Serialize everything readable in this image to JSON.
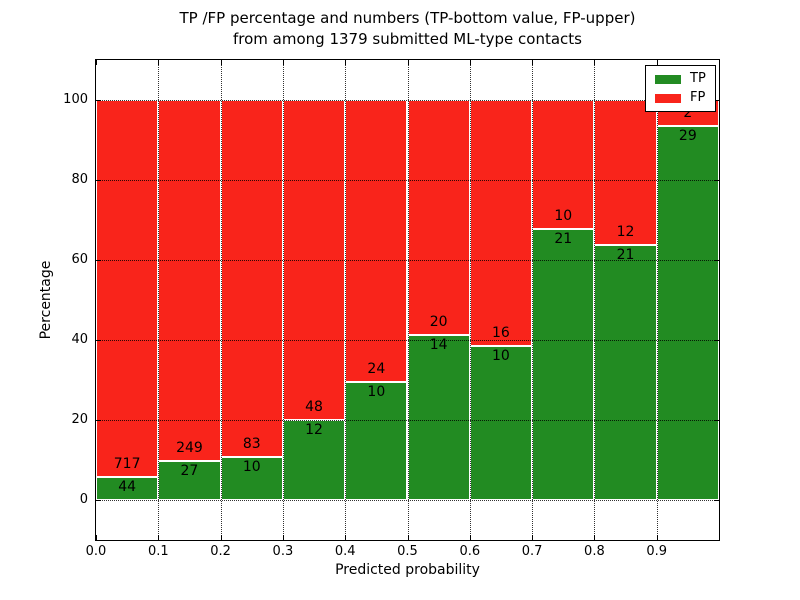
{
  "figure": {
    "title_line1": "TP /FP percentage and numbers (TP-bottom value, FP-upper)",
    "title_line2": "from among 1379 submitted ML-type contacts"
  },
  "chart_data": {
    "type": "bar",
    "stacked": true,
    "title": "TP /FP percentage and numbers (TP-bottom value, FP-upper) from among 1379 submitted ML-type contacts",
    "xlabel": "Predicted probability",
    "ylabel": "Percentage",
    "total_contacts": 1379,
    "xlim": [
      0.0,
      1.0
    ],
    "ylim": [
      -10,
      110
    ],
    "grid": "dotted",
    "bar_edge_color": "#ffffff",
    "bin_edges": [
      0.0,
      0.1,
      0.2,
      0.3,
      0.4,
      0.5,
      0.6,
      0.7,
      0.8,
      0.9,
      1.0
    ],
    "xticks": [
      {
        "value": 0.0,
        "label": "0.0"
      },
      {
        "value": 0.1,
        "label": "0.1"
      },
      {
        "value": 0.2,
        "label": "0.2"
      },
      {
        "value": 0.3,
        "label": "0.3"
      },
      {
        "value": 0.4,
        "label": "0.4"
      },
      {
        "value": 0.5,
        "label": "0.5"
      },
      {
        "value": 0.6,
        "label": "0.6"
      },
      {
        "value": 0.7,
        "label": "0.7"
      },
      {
        "value": 0.8,
        "label": "0.8"
      },
      {
        "value": 0.9,
        "label": "0.9"
      }
    ],
    "yticks": [
      {
        "value": 0,
        "label": "0"
      },
      {
        "value": 20,
        "label": "20"
      },
      {
        "value": 40,
        "label": "40"
      },
      {
        "value": 60,
        "label": "60"
      },
      {
        "value": 80,
        "label": "80"
      },
      {
        "value": 100,
        "label": "100"
      }
    ],
    "series": [
      {
        "name": "TP",
        "color": "#228b22",
        "counts": [
          44,
          27,
          10,
          12,
          10,
          14,
          10,
          21,
          21,
          29
        ],
        "percent": [
          5.78,
          9.78,
          10.75,
          20.0,
          29.41,
          41.18,
          38.46,
          67.74,
          63.64,
          93.55
        ]
      },
      {
        "name": "FP",
        "color": "#f9241b",
        "counts": [
          717,
          249,
          83,
          48,
          24,
          20,
          16,
          10,
          12,
          2
        ],
        "percent": [
          94.22,
          90.22,
          89.25,
          80.0,
          70.59,
          58.82,
          61.54,
          32.26,
          36.36,
          6.45
        ]
      }
    ],
    "legend": {
      "position": "upper right",
      "entries": [
        {
          "label": "TP",
          "color": "#228b22"
        },
        {
          "label": "FP",
          "color": "#f9241b"
        }
      ]
    }
  }
}
